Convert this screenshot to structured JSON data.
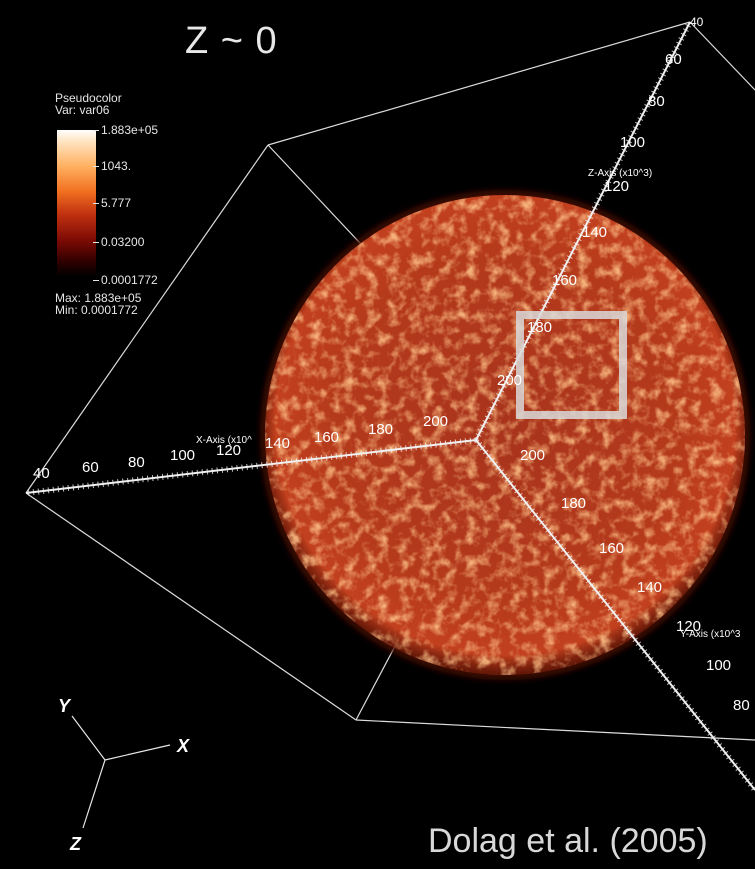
{
  "title": "Z ~ 0",
  "credit": "Dolag et al. (2005)",
  "legend": {
    "heading": "Pseudocolor",
    "variable": "Var: var06",
    "ticks": [
      "1.883e+05",
      "1043.",
      "5.777",
      "0.03200",
      "0.0001772"
    ],
    "max": "Max:  1.883e+05",
    "min": "Min:  0.0001772"
  },
  "axes": {
    "x_title": "X-Axis (x10^",
    "y_title": "Y-Axis (x10^3",
    "z_title": "Z-Axis (x10^3)",
    "x_labels": [
      "40",
      "60",
      "80",
      "100",
      "120",
      "140",
      "160",
      "180",
      "200"
    ],
    "y_labels": [
      "200",
      "180",
      "160",
      "140",
      "120",
      "100",
      "80"
    ],
    "z_labels": [
      "40",
      "60",
      "80",
      "100",
      "120",
      "140",
      "160",
      "180",
      "200"
    ]
  },
  "triad": {
    "x": "X",
    "y": "Y",
    "z": "Z"
  },
  "colors": {
    "background": "#000000",
    "sphere": "#b8351a",
    "box_lines": "#e0e0e0",
    "highlight_box": "#d9d9d9"
  }
}
